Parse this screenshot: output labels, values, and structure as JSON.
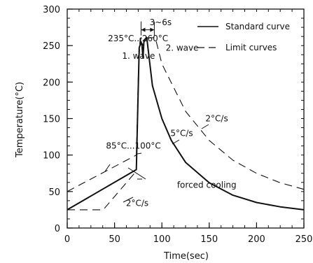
{
  "chart_data": {
    "type": "line",
    "xlabel": "Time(sec)",
    "ylabel": "Temperature(°C)",
    "xlim": [
      0,
      250
    ],
    "ylim": [
      0,
      300
    ],
    "x_ticks": [
      0,
      50,
      100,
      150,
      200,
      250
    ],
    "y_ticks": [
      0,
      50,
      100,
      150,
      200,
      250,
      300
    ],
    "x_minor_step": 12.5,
    "y_minor_step": 12.5,
    "grid": false,
    "legend_position": "top-right",
    "series": [
      {
        "name": "Standard curve",
        "style": "solid",
        "points": [
          [
            0,
            25
          ],
          [
            73,
            80
          ],
          [
            76,
            247
          ],
          [
            78,
            255
          ],
          [
            79,
            250
          ],
          [
            80,
            233
          ],
          [
            81,
            255
          ],
          [
            84,
            261
          ],
          [
            90,
            195
          ],
          [
            100,
            150
          ],
          [
            110,
            120
          ],
          [
            125,
            90
          ],
          [
            150,
            62
          ],
          [
            175,
            45
          ],
          [
            200,
            35
          ],
          [
            225,
            29
          ],
          [
            250,
            25
          ]
        ]
      },
      {
        "name": "Limit curves",
        "style": "dashed",
        "points": [
          [
            0,
            25
          ],
          [
            38,
            25
          ],
          [
            73,
            78
          ],
          [
            76,
            248
          ],
          [
            78,
            261
          ],
          [
            80,
            250
          ]
        ]
      },
      {
        "name": "Limit curves",
        "style": "dashed",
        "points": [
          [
            0,
            50
          ],
          [
            73,
            100
          ],
          [
            75,
            205
          ],
          [
            77,
            260
          ],
          [
            93,
            261
          ],
          [
            100,
            225
          ],
          [
            125,
            160
          ],
          [
            150,
            120
          ],
          [
            175,
            93
          ],
          [
            200,
            75
          ],
          [
            225,
            62
          ],
          [
            250,
            53
          ]
        ]
      }
    ],
    "annotations": [
      {
        "text": "3~6s",
        "x": 87,
        "y": 278
      },
      {
        "text": "235°C...260°C",
        "x": 43,
        "y": 256
      },
      {
        "text": "1. wave",
        "x": 58,
        "y": 232
      },
      {
        "text": "2. wave",
        "x": 104,
        "y": 243
      },
      {
        "text": "2°C/s",
        "x": 146,
        "y": 146
      },
      {
        "text": "5°C/s",
        "x": 109,
        "y": 126
      },
      {
        "text": "85°C...100°C",
        "x": 41,
        "y": 109
      },
      {
        "text": "forced cooling",
        "x": 116,
        "y": 55
      },
      {
        "text": "2°C/s",
        "x": 62,
        "y": 30
      }
    ],
    "span_marker": {
      "x1": 78,
      "x2": 92,
      "y": 285
    }
  },
  "legend": [
    {
      "label": "Standard curve",
      "style": "solid"
    },
    {
      "label": "Limit curves",
      "style": "dashed"
    }
  ]
}
